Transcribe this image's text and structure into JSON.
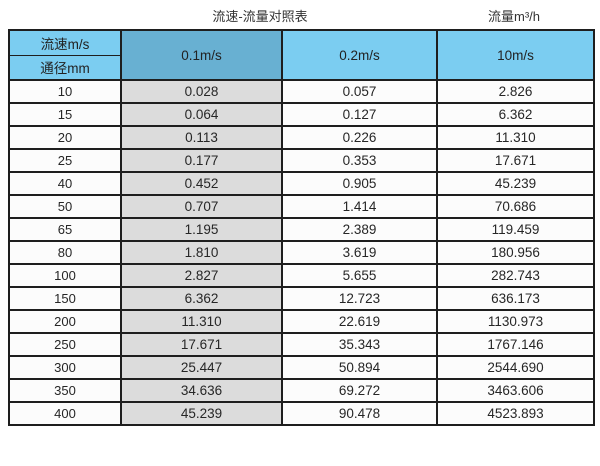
{
  "page": {
    "title_left": "流速-流量对照表",
    "title_right": "流量m³/h"
  },
  "chart_data": {
    "type": "table",
    "title": "流速-流量对照表",
    "flow_unit_label": "流量m³/h",
    "corner": {
      "velocity_label": "流速m/s",
      "diameter_label": "通径mm"
    },
    "velocity_columns": [
      "0.1m/s",
      "0.2m/s",
      "10m/s"
    ],
    "rows": [
      {
        "diameter": "10",
        "values": [
          "0.028",
          "0.057",
          "2.826"
        ]
      },
      {
        "diameter": "15",
        "values": [
          "0.064",
          "0.127",
          "6.362"
        ]
      },
      {
        "diameter": "20",
        "values": [
          "0.113",
          "0.226",
          "11.310"
        ]
      },
      {
        "diameter": "25",
        "values": [
          "0.177",
          "0.353",
          "17.671"
        ]
      },
      {
        "diameter": "40",
        "values": [
          "0.452",
          "0.905",
          "45.239"
        ]
      },
      {
        "diameter": "50",
        "values": [
          "0.707",
          "1.414",
          "70.686"
        ]
      },
      {
        "diameter": "65",
        "values": [
          "1.195",
          "2.389",
          "119.459"
        ]
      },
      {
        "diameter": "80",
        "values": [
          "1.810",
          "3.619",
          "180.956"
        ]
      },
      {
        "diameter": "100",
        "values": [
          "2.827",
          "5.655",
          "282.743"
        ]
      },
      {
        "diameter": "150",
        "values": [
          "6.362",
          "12.723",
          "636.173"
        ]
      },
      {
        "diameter": "200",
        "values": [
          "11.310",
          "22.619",
          "1130.973"
        ]
      },
      {
        "diameter": "250",
        "values": [
          "17.671",
          "35.343",
          "1767.146"
        ]
      },
      {
        "diameter": "300",
        "values": [
          "25.447",
          "50.894",
          "2544.690"
        ]
      },
      {
        "diameter": "350",
        "values": [
          "34.636",
          "69.272",
          "3463.606"
        ]
      },
      {
        "diameter": "400",
        "values": [
          "45.239",
          "90.478",
          "4523.893"
        ]
      }
    ],
    "colors": {
      "header_blue": "#7bcdf1",
      "header_blue_dark": "#68b0d2",
      "gray_column": "#dcdcdc",
      "border": "#1e1e1e"
    },
    "layout": {
      "legend_position": "none",
      "grid": "full-borders"
    }
  }
}
